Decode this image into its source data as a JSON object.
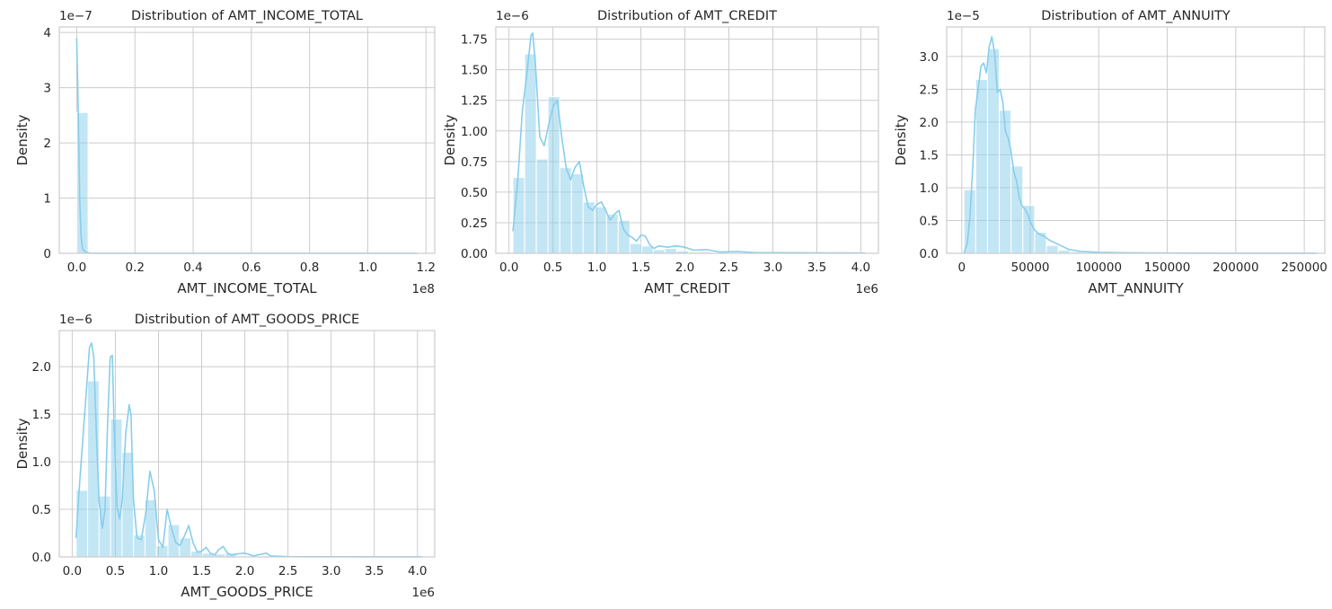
{
  "colors": {
    "bar": "#87ceeb",
    "line": "#87ceeb",
    "grid": "#cccccc",
    "spine": "#cccccc",
    "text": "#262626"
  },
  "chart_data": [
    {
      "type": "bar",
      "title": "Distribution of AMT_INCOME_TOTAL",
      "xlabel": "AMT_INCOME_TOTAL",
      "ylabel": "Density",
      "x_scale_label": "1e8",
      "y_scale_label": "1e−7",
      "xticks": [
        0,
        0.2,
        0.4,
        0.6,
        0.8,
        1.0,
        1.2
      ],
      "xtick_labels": [
        "0.0",
        "0.2",
        "0.4",
        "0.6",
        "0.8",
        "1.0",
        "1.2"
      ],
      "yticks": [
        0,
        1,
        2,
        3,
        4
      ],
      "ytick_labels": [
        "0",
        "1",
        "2",
        "3",
        "4"
      ],
      "xlim": [
        -0.06,
        1.23
      ],
      "ylim": [
        0,
        4.1
      ],
      "grid": true,
      "bin_edges": [
        0,
        0.039
      ],
      "values": [
        2.55
      ],
      "kde": {
        "x": [
          0.0,
          0.005,
          0.01,
          0.015,
          0.02,
          0.03,
          0.05,
          0.1,
          1.17
        ],
        "y": [
          3.9,
          2.6,
          1.0,
          0.3,
          0.08,
          0.02,
          0.0,
          0.0,
          0.0
        ]
      }
    },
    {
      "type": "bar",
      "title": "Distribution of AMT_CREDIT",
      "xlabel": "AMT_CREDIT",
      "ylabel": "Density",
      "x_scale_label": "1e6",
      "y_scale_label": "1e−6",
      "xticks": [
        0,
        0.5,
        1.0,
        1.5,
        2.0,
        2.5,
        3.0,
        3.5,
        4.0
      ],
      "xtick_labels": [
        "0.0",
        "0.5",
        "1.0",
        "1.5",
        "2.0",
        "2.5",
        "3.0",
        "3.5",
        "4.0"
      ],
      "yticks": [
        0,
        0.25,
        0.5,
        0.75,
        1.0,
        1.25,
        1.5,
        1.75
      ],
      "ytick_labels": [
        "0.00",
        "0.25",
        "0.50",
        "0.75",
        "1.00",
        "1.25",
        "1.50",
        "1.75"
      ],
      "xlim": [
        -0.15,
        4.2
      ],
      "ylim": [
        0,
        1.85
      ],
      "grid": true,
      "bin_edges": [
        0.045,
        0.178,
        0.311,
        0.444,
        0.577,
        0.71,
        0.843,
        0.976,
        1.109,
        1.242,
        1.375,
        1.508,
        1.641,
        1.774,
        1.907,
        2.04,
        2.173,
        2.306,
        2.439,
        2.572,
        2.705,
        2.838,
        2.971,
        3.104,
        3.237,
        3.37,
        3.503,
        3.636,
        3.769,
        3.902,
        4.035
      ],
      "values": [
        0.62,
        1.63,
        0.77,
        1.28,
        0.7,
        0.65,
        0.42,
        0.38,
        0.32,
        0.27,
        0.08,
        0.06,
        0.03,
        0.04,
        0.02,
        0.01,
        0.01,
        0.005,
        0.005,
        0.003,
        0.002,
        0.001,
        0.001,
        0.001,
        0.001,
        0.0005,
        0.0005,
        0.0005,
        0.0005,
        0.0005
      ],
      "kde": {
        "x": [
          0.045,
          0.1,
          0.15,
          0.2,
          0.25,
          0.27,
          0.3,
          0.35,
          0.4,
          0.45,
          0.5,
          0.55,
          0.6,
          0.65,
          0.7,
          0.75,
          0.8,
          0.85,
          0.9,
          0.95,
          1.0,
          1.05,
          1.1,
          1.15,
          1.2,
          1.25,
          1.3,
          1.35,
          1.4,
          1.45,
          1.5,
          1.55,
          1.6,
          1.65,
          1.7,
          1.8,
          1.9,
          2.0,
          2.1,
          2.25,
          2.4,
          2.6,
          2.8,
          3.0,
          3.5,
          4.05
        ],
        "y": [
          0.18,
          0.6,
          1.15,
          1.45,
          1.78,
          1.8,
          1.55,
          0.95,
          0.88,
          1.05,
          1.2,
          1.25,
          0.95,
          0.7,
          0.6,
          0.7,
          0.75,
          0.55,
          0.38,
          0.35,
          0.4,
          0.42,
          0.35,
          0.27,
          0.32,
          0.35,
          0.2,
          0.15,
          0.13,
          0.1,
          0.15,
          0.14,
          0.07,
          0.04,
          0.06,
          0.05,
          0.06,
          0.05,
          0.025,
          0.03,
          0.01,
          0.015,
          0.005,
          0.005,
          0.003,
          0.002
        ]
      }
    },
    {
      "type": "bar",
      "title": "Distribution of AMT_ANNUITY",
      "xlabel": "AMT_ANNUITY",
      "ylabel": "Density",
      "x_scale_label": "",
      "y_scale_label": "1e−5",
      "xticks": [
        0,
        50000,
        100000,
        150000,
        200000,
        250000
      ],
      "xtick_labels": [
        "0",
        "50000",
        "100000",
        "150000",
        "200000",
        "250000"
      ],
      "yticks": [
        0,
        0.5,
        1.0,
        1.5,
        2.0,
        2.5,
        3.0
      ],
      "ytick_labels": [
        "0.0",
        "0.5",
        "1.0",
        "1.5",
        "2.0",
        "2.5",
        "3.0"
      ],
      "xlim": [
        -11000,
        265000
      ],
      "ylim": [
        0,
        3.45
      ],
      "grid": true,
      "bin_edges": [
        1600,
        10200,
        18800,
        27400,
        36000,
        44600,
        53200,
        61800,
        70400,
        79000,
        87600,
        96200,
        104800,
        113400,
        122000,
        130600,
        139200,
        147800,
        156400,
        165000,
        173600,
        182200,
        190800,
        199400,
        208000,
        216600,
        225200,
        233800,
        242400,
        251000,
        259600
      ],
      "values": [
        0.97,
        2.65,
        3.12,
        2.18,
        1.33,
        0.73,
        0.32,
        0.12,
        0.05,
        0.02,
        0.01,
        0.005,
        0.003,
        0.002,
        0.001,
        0.001,
        0.001,
        0.0005,
        0.0005,
        0.0005,
        0.0005,
        0.0005,
        0.0005,
        0.0005,
        0.0005,
        0.0005,
        0.0005,
        0.0005,
        0.0005,
        0.0005
      ],
      "kde": {
        "x": [
          1600,
          4000,
          6000,
          8000,
          10000,
          12000,
          14000,
          16000,
          18000,
          20000,
          22000,
          24000,
          26000,
          28000,
          30000,
          32000,
          34000,
          36000,
          38000,
          40000,
          42000,
          44000,
          46000,
          48000,
          50000,
          53000,
          56000,
          60000,
          64000,
          68000,
          72000,
          78000,
          86000,
          100000,
          120000,
          150000,
          200000,
          259000
        ],
        "y": [
          0.0,
          0.15,
          0.55,
          1.3,
          2.2,
          2.5,
          2.85,
          2.9,
          2.75,
          3.15,
          3.3,
          3.05,
          2.45,
          2.5,
          2.3,
          1.85,
          1.75,
          1.55,
          1.25,
          1.1,
          0.85,
          0.72,
          0.68,
          0.6,
          0.48,
          0.36,
          0.3,
          0.26,
          0.2,
          0.16,
          0.12,
          0.06,
          0.03,
          0.015,
          0.008,
          0.004,
          0.002,
          0.001
        ]
      }
    },
    {
      "type": "bar",
      "title": "Distribution of AMT_GOODS_PRICE",
      "xlabel": "AMT_GOODS_PRICE",
      "ylabel": "Density",
      "x_scale_label": "1e6",
      "y_scale_label": "1e−6",
      "xticks": [
        0,
        0.5,
        1.0,
        1.5,
        2.0,
        2.5,
        3.0,
        3.5,
        4.0
      ],
      "xtick_labels": [
        "0.0",
        "0.5",
        "1.0",
        "1.5",
        "2.0",
        "2.5",
        "3.0",
        "3.5",
        "4.0"
      ],
      "yticks": [
        0,
        0.5,
        1.0,
        1.5,
        2.0
      ],
      "ytick_labels": [
        "0.0",
        "0.5",
        "1.0",
        "1.5",
        "2.0"
      ],
      "xlim": [
        -0.15,
        4.2
      ],
      "ylim": [
        0,
        2.38
      ],
      "grid": true,
      "bin_edges": [
        0.045,
        0.178,
        0.311,
        0.444,
        0.577,
        0.71,
        0.843,
        0.976,
        1.109,
        1.242,
        1.375,
        1.508,
        1.641,
        1.774,
        1.907,
        2.04,
        2.173,
        2.306,
        2.439,
        2.572,
        2.705,
        2.838,
        2.971,
        3.104,
        3.237,
        3.37,
        3.503,
        3.636,
        3.769,
        3.902,
        4.035
      ],
      "values": [
        0.7,
        1.85,
        0.64,
        1.45,
        1.1,
        0.23,
        0.6,
        0.12,
        0.34,
        0.2,
        0.06,
        0.04,
        0.03,
        0.04,
        0.01,
        0.01,
        0.01,
        0.005,
        0.003,
        0.002,
        0.001,
        0.001,
        0.001,
        0.001,
        0.001,
        0.0005,
        0.0005,
        0.0005,
        0.0005,
        0.0005
      ],
      "kde": {
        "x": [
          0.045,
          0.08,
          0.12,
          0.16,
          0.2,
          0.225,
          0.25,
          0.28,
          0.31,
          0.35,
          0.38,
          0.41,
          0.44,
          0.465,
          0.49,
          0.52,
          0.55,
          0.58,
          0.62,
          0.66,
          0.68,
          0.71,
          0.75,
          0.8,
          0.85,
          0.9,
          0.95,
          1.0,
          1.05,
          1.1,
          1.15,
          1.2,
          1.25,
          1.3,
          1.35,
          1.4,
          1.45,
          1.5,
          1.55,
          1.6,
          1.65,
          1.7,
          1.75,
          1.8,
          1.85,
          1.9,
          2.0,
          2.1,
          2.2,
          2.25,
          2.3,
          2.5,
          3.0,
          4.05
        ],
        "y": [
          0.2,
          0.7,
          1.2,
          1.7,
          2.2,
          2.25,
          2.1,
          1.3,
          0.6,
          0.3,
          0.5,
          1.4,
          2.1,
          2.12,
          1.2,
          0.52,
          0.4,
          0.6,
          1.3,
          1.6,
          1.5,
          0.6,
          0.2,
          0.18,
          0.45,
          0.9,
          0.7,
          0.18,
          0.1,
          0.5,
          0.3,
          0.15,
          0.12,
          0.22,
          0.33,
          0.15,
          0.05,
          0.06,
          0.1,
          0.04,
          0.02,
          0.08,
          0.11,
          0.04,
          0.02,
          0.03,
          0.04,
          0.01,
          0.03,
          0.04,
          0.01,
          0.003,
          0.002,
          0.001
        ]
      }
    }
  ]
}
